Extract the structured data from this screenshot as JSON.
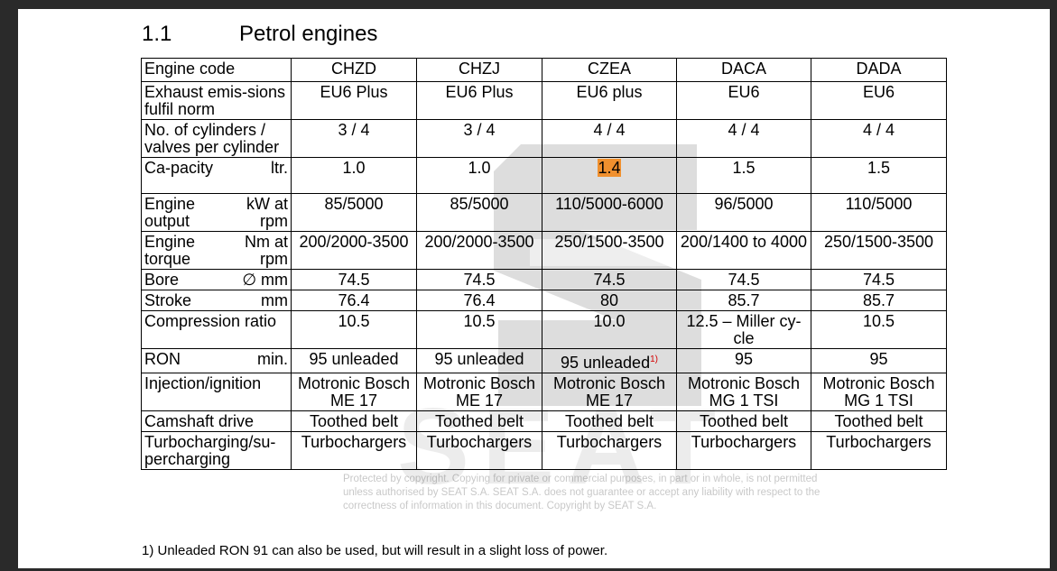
{
  "section": {
    "number": "1.1",
    "title": "Petrol engines"
  },
  "table": {
    "header_label": "Engine code",
    "codes": [
      "CHZD",
      "CHZJ",
      "CZEA",
      "DACA",
      "DADA"
    ],
    "rows": [
      {
        "label": "Exhaust emis-sions fulfil norm",
        "unit": "",
        "values": [
          "EU6 Plus",
          "EU6 Plus",
          "EU6 plus",
          "EU6",
          "EU6"
        ]
      },
      {
        "label": "No. of cylinders / valves per cylinder",
        "unit": "",
        "values": [
          "3 / 4",
          "3 / 4",
          "4 / 4",
          "4 / 4",
          "4 / 4"
        ]
      },
      {
        "label": "Ca-pacity",
        "unit": "ltr.",
        "values": [
          "1.0",
          "1.0",
          "1.4",
          "1.5",
          "1.5"
        ]
      },
      {
        "label": "Engine output",
        "unit": "kW at rpm",
        "values": [
          "85/5000",
          "85/5000",
          "110/5000-6000",
          "96/5000",
          "110/5000"
        ]
      },
      {
        "label": "Engine torque",
        "unit": "Nm at rpm",
        "values": [
          "200/2000-3500",
          "200/2000-3500",
          "250/1500-3500",
          "200/1400 to 4000",
          "250/1500-3500"
        ]
      },
      {
        "label": "Bore",
        "unit": "∅ mm",
        "values": [
          "74.5",
          "74.5",
          "74.5",
          "74.5",
          "74.5"
        ]
      },
      {
        "label": "Stroke",
        "unit": "mm",
        "values": [
          "76.4",
          "76.4",
          "80",
          "85.7",
          "85.7"
        ]
      },
      {
        "label": "Compression ratio",
        "unit": "",
        "values": [
          "10.5",
          "10.5",
          "10.0",
          "12.5 – Miller cy-cle",
          "10.5"
        ]
      },
      {
        "label": "RON",
        "unit": "min.",
        "values": [
          "95 unleaded",
          "95 unleaded",
          "95 unleaded",
          "95",
          "95"
        ]
      },
      {
        "label": "Injection/ignition",
        "unit": "",
        "values": [
          "Motronic Bosch ME 17",
          "Motronic Bosch ME 17",
          "Motronic Bosch ME 17",
          "Motronic Bosch MG 1 TSI",
          "Motronic Bosch MG 1 TSI"
        ]
      },
      {
        "label": "Camshaft drive",
        "unit": "",
        "values": [
          "Toothed belt",
          "Toothed belt",
          "Toothed belt",
          "Toothed belt",
          "Toothed belt"
        ]
      },
      {
        "label": "Turbocharging/su-percharging",
        "unit": "",
        "values": [
          "Turbochargers",
          "Turbochargers",
          "Turbochargers",
          "Turbochargers",
          "Turbochargers"
        ]
      }
    ],
    "highlight": {
      "row": 2,
      "col": 2,
      "color": "#f0902e"
    },
    "footnote_marker": "1)"
  },
  "footnote": "1) Unleaded RON 91 can also be used, but will result in a slight loss of power.",
  "watermark": {
    "brand": "SEAT",
    "note": "Protected by copyright. Copying for private or commercial purposes, in part or in whole, is not permitted unless authorised by SEAT S.A. SEAT S.A. does not guarantee or accept any liability with respect to the correctness of information in this document. Copyright by SEAT S.A."
  }
}
